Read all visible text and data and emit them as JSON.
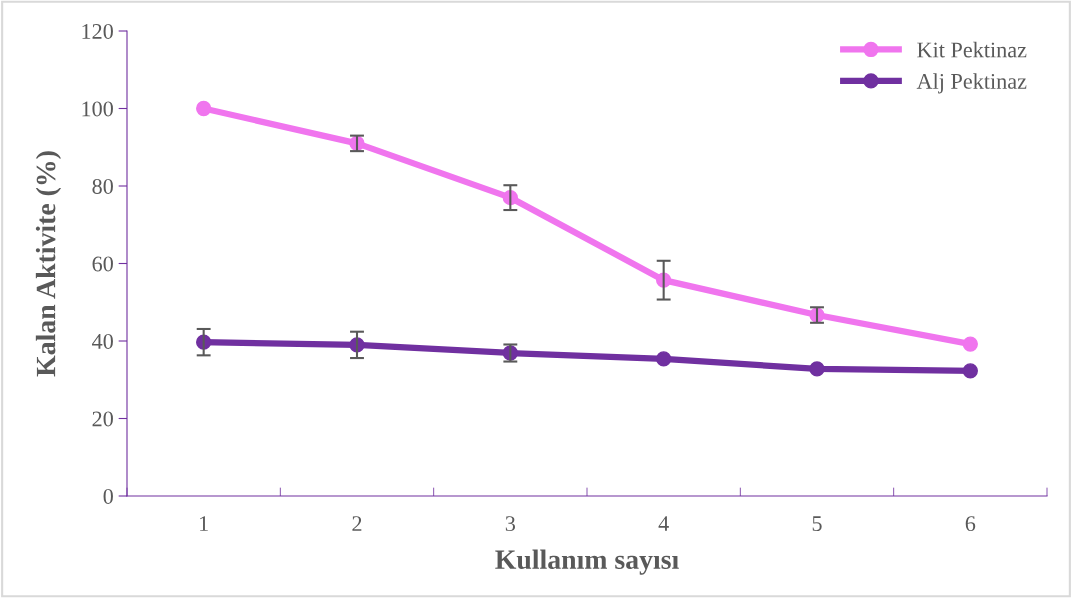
{
  "chart_data": {
    "type": "line",
    "xlabel": "Kullanım sayısı",
    "ylabel": "Kalan Aktivite (%)",
    "categories": [
      "1",
      "2",
      "3",
      "4",
      "5",
      "6"
    ],
    "series": [
      {
        "name": "Kit Pektinaz",
        "color": "#f075ee",
        "values": [
          100,
          91,
          77,
          55.7,
          46.7,
          39.2
        ],
        "errors": [
          null,
          2,
          3.2,
          5,
          2,
          null
        ]
      },
      {
        "name": "Alj Pektinaz",
        "color": "#7030a0",
        "values": [
          39.7,
          39,
          36.9,
          35.4,
          32.8,
          32.3
        ],
        "errors": [
          3.4,
          3.4,
          2.2,
          null,
          null,
          null
        ]
      }
    ],
    "ylim": [
      0,
      120
    ],
    "yticks": [
      0,
      20,
      40,
      60,
      80,
      100,
      120
    ],
    "grid": false,
    "legend": "top right",
    "marker": "circle",
    "line_style": "solid"
  }
}
